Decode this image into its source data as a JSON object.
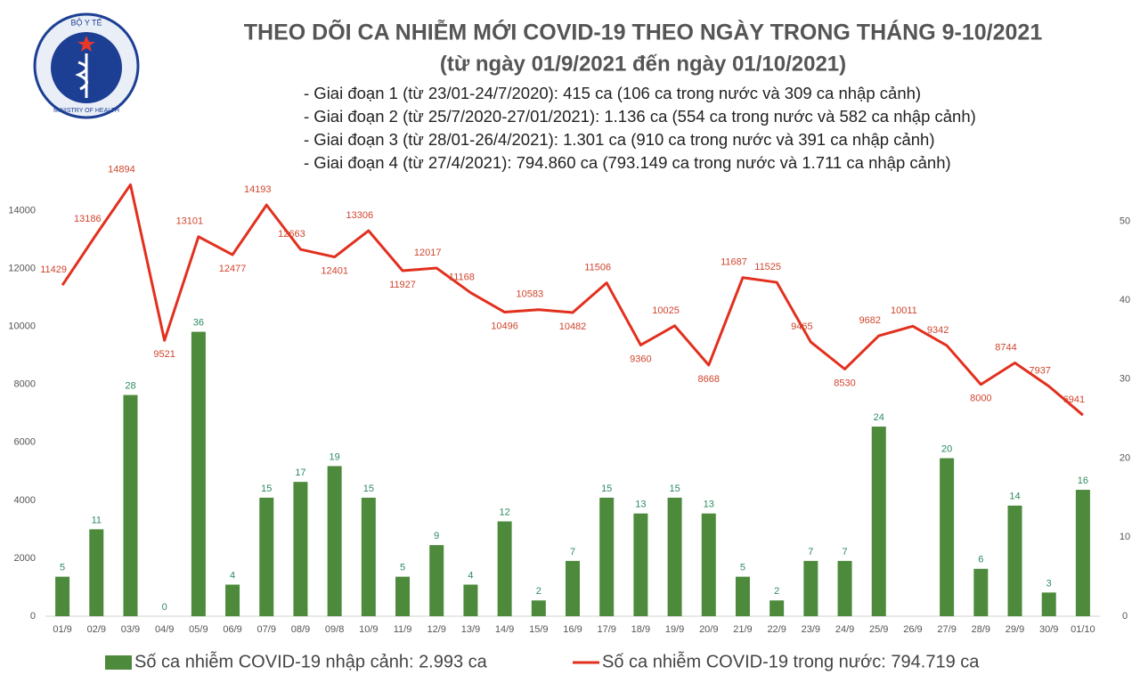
{
  "logo": {
    "top": "BỘ Y TẾ",
    "bottom": "MINISTRY OF HEALTH"
  },
  "chart_data": {
    "type": "combo",
    "title": "THEO DÕI CA NHIỄM MỚI COVID-19 THEO NGÀY TRONG THÁNG 9-10/2021",
    "subtitle": "(từ ngày 01/9/2021 đến ngày 01/10/2021)",
    "notes": [
      "- Giai đoạn 1 (từ 23/01-24/7/2020): 415 ca (106 ca trong nước và 309 ca nhập cảnh)",
      "- Giai đoạn 2 (từ 25/7/2020-27/01/2021): 1.136 ca (554 ca trong nước và 582 ca nhập cảnh)",
      "- Giai đoạn 3 (từ 28/01-26/4/2021): 1.301 ca (910 ca trong nước và 391 ca nhập cảnh)",
      "- Giai đoạn 4 (từ 27/4/2021): 794.860 ca (793.149 ca trong nước và 1.711 ca nhập cảnh)"
    ],
    "categories": [
      "01/9",
      "02/9",
      "03/9",
      "04/9",
      "05/9",
      "06/9",
      "07/9",
      "08/9",
      "09/8",
      "10/9",
      "11/9",
      "12/9",
      "13/9",
      "14/9",
      "15/9",
      "16/9",
      "17/9",
      "18/9",
      "19/9",
      "20/9",
      "21/9",
      "22/9",
      "23/9",
      "24/9",
      "25/9",
      "26/9",
      "27/9",
      "28/9",
      "29/9",
      "30/9",
      "01/10"
    ],
    "series": [
      {
        "name": "Số ca nhiễm COVID-19 nhập cảnh: 2.993 ca",
        "type": "bar",
        "axis": "y2",
        "color": "#4d8a3c",
        "label_color": "#2e8a5e",
        "values": [
          5,
          11,
          28,
          0,
          36,
          4,
          15,
          17,
          19,
          15,
          5,
          9,
          4,
          12,
          2,
          7,
          15,
          13,
          15,
          13,
          5,
          2,
          7,
          7,
          24,
          null,
          20,
          6,
          14,
          3,
          16
        ]
      },
      {
        "name": "Số ca nhiễm COVID-19 trong nước: 794.719 ca",
        "type": "line",
        "color": "#e2301f",
        "label_color": "#d0452e",
        "values": [
          11429,
          13186,
          14894,
          9521,
          13101,
          12477,
          14193,
          12663,
          12401,
          13306,
          11927,
          12017,
          11168,
          10496,
          10583,
          10482,
          11506,
          9360,
          10025,
          8668,
          11687,
          11525,
          9465,
          8530,
          9682,
          10011,
          9342,
          8000,
          8744,
          7937,
          6941
        ]
      }
    ],
    "ylim": [
      0,
      15000
    ],
    "yticks": [
      0,
      2000,
      4000,
      6000,
      8000,
      10000,
      12000,
      14000
    ],
    "y2lim": [
      0,
      55
    ],
    "y2ticks": [
      0,
      10,
      20,
      30,
      40,
      50
    ],
    "grid": false
  }
}
